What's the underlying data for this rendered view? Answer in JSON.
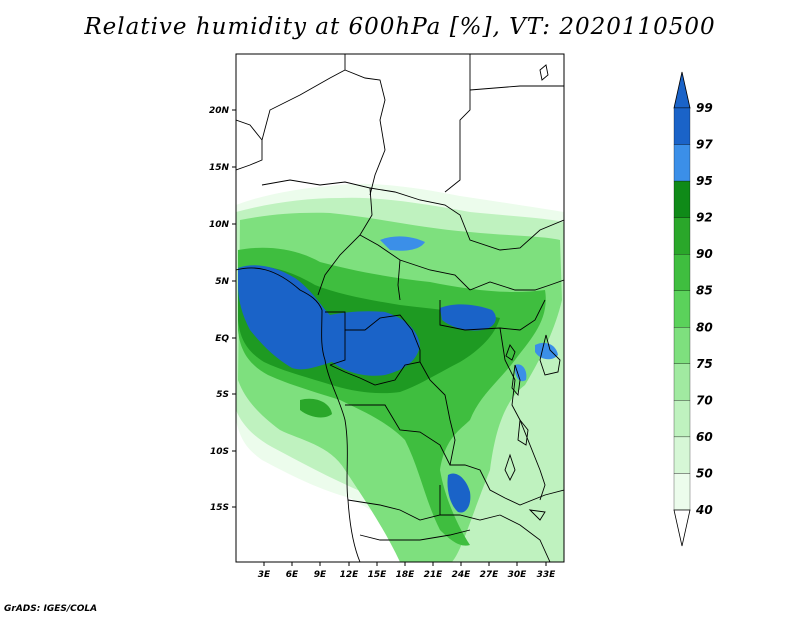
{
  "title": "Relative humidity at 600hPa [%], VT: 2020110500",
  "credit": "GrADS: IGES/COLA",
  "map": {
    "lat_labels": [
      "20N",
      "15N",
      "10N",
      "5N",
      "EQ",
      "5S",
      "10S",
      "15S"
    ],
    "lon_labels": [
      "3E",
      "6E",
      "9E",
      "12E",
      "15E",
      "18E",
      "21E",
      "24E",
      "27E",
      "30E",
      "33E"
    ]
  },
  "colorbar": {
    "levels": [
      "99",
      "97",
      "95",
      "92",
      "90",
      "85",
      "80",
      "75",
      "70",
      "60",
      "50",
      "40"
    ],
    "colors": [
      "#1a63c8",
      "#3b8fe8",
      "#0f8a18",
      "#2aa72a",
      "#3fbe3f",
      "#5bd25b",
      "#7ee07e",
      "#a1eaa1",
      "#bff2bf",
      "#d6f7d6",
      "#ecfcec"
    ]
  }
}
